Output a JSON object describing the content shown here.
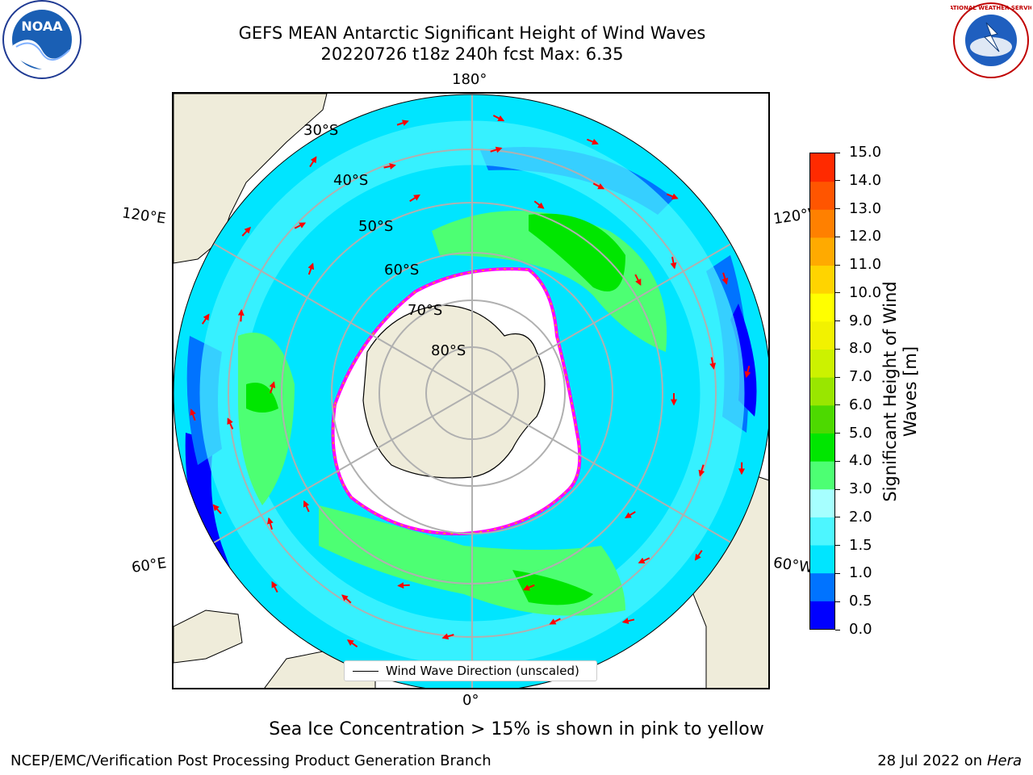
{
  "header": {
    "title_line1": "GEFS MEAN Antarctic Significant Height of Wind Waves",
    "title_line2": "20220726 t18z 240h fcst   Max: 6.35"
  },
  "logos": {
    "noaa_label": "NOAA",
    "noaa_ring": "NATIONAL OCEANIC AND ATMOSPHERIC ADMINISTRATION · U.S. DEPARTMENT OF COMMERCE",
    "nws_ring": "NATIONAL WEATHER SERVICE"
  },
  "map": {
    "longitude_labels": [
      "180°",
      "120°E",
      "120°W",
      "60°E",
      "60°W",
      "0°"
    ],
    "latitude_labels": [
      "30°S",
      "40°S",
      "50°S",
      "60°S",
      "70°S",
      "80°S"
    ],
    "legend_label": "Wind Wave Direction (unscaled)",
    "arrow_color": "#ff0000",
    "land_color": "#efecda",
    "ice_edge_colors": [
      "#ff00ff",
      "#ffb000"
    ]
  },
  "colorbar": {
    "title": "Significant Height of Wind Waves [m]",
    "ticks": [
      "0.0",
      "0.5",
      "1.0",
      "1.5",
      "2.0",
      "3.0",
      "4.0",
      "5.0",
      "6.0",
      "7.0",
      "8.0",
      "9.0",
      "10.0",
      "11.0",
      "12.0",
      "13.0",
      "14.0",
      "15.0"
    ],
    "colors": [
      "#0000ff",
      "#0073ff",
      "#00e5ff",
      "#4df6ff",
      "#a6ffff",
      "#4dff73",
      "#00e600",
      "#4dd900",
      "#99e600",
      "#ccf200",
      "#f2f200",
      "#ffff00",
      "#ffd400",
      "#ffaa00",
      "#ff8000",
      "#ff5500",
      "#ff2a00"
    ]
  },
  "footer": {
    "note": "Sea Ice Concentration > 15% is shown in pink to yellow",
    "left": "NCEP/EMC/Verification Post Processing Product Generation Branch",
    "date": "28 Jul 2022 on ",
    "machine": "Hera"
  }
}
